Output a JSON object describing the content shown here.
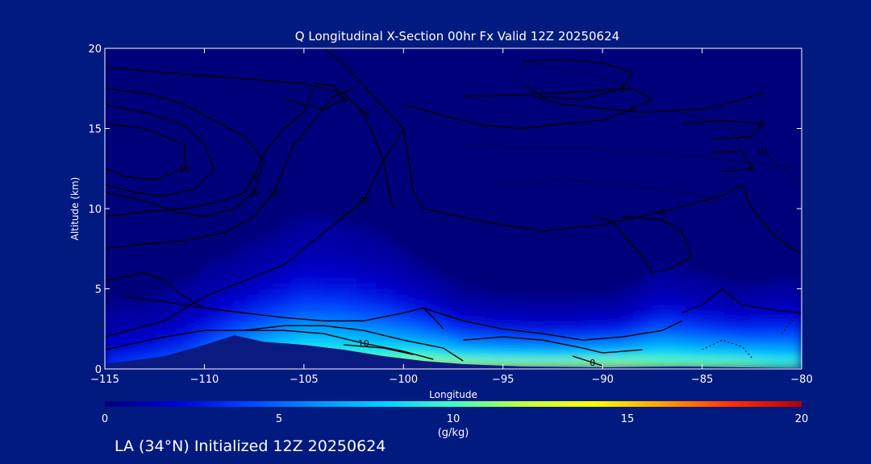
{
  "chart_data": {
    "type": "heatmap",
    "title": "Q Longitudinal X-Section 00hr  Fx Valid 12Z 20250624",
    "xlabel": "Longitude",
    "ylabel": "Altitude (km)",
    "xlim": [
      -115,
      -80
    ],
    "ylim": [
      0,
      20
    ],
    "x_ticks": [
      -115,
      -110,
      -105,
      -100,
      -95,
      -90,
      -85,
      -80
    ],
    "y_ticks": [
      0,
      5,
      10,
      15,
      20
    ],
    "colorbar": {
      "min": 0,
      "max": 20,
      "ticks": [
        0,
        5,
        10,
        15,
        20
      ],
      "label": "(g/kg)",
      "colors": [
        "#00007a",
        "#0000d0",
        "#0040ff",
        "#0090ff",
        "#00d0ff",
        "#40ffc0",
        "#c0ff40",
        "#ffff00",
        "#ffa000",
        "#ff3000",
        "#b00000"
      ]
    },
    "moisture_columns": [
      {
        "lon": -115,
        "top_km": 4.0,
        "surface_q": 4
      },
      {
        "lon": -113,
        "top_km": 4.2,
        "surface_q": 5
      },
      {
        "lon": -111,
        "top_km": 5.5,
        "surface_q": 6
      },
      {
        "lon": -109,
        "top_km": 7.0,
        "surface_q": 9
      },
      {
        "lon": -107,
        "top_km": 8.2,
        "surface_q": 11
      },
      {
        "lon": -105,
        "top_km": 9.5,
        "surface_q": 12
      },
      {
        "lon": -103,
        "top_km": 9.2,
        "surface_q": 12
      },
      {
        "lon": -101,
        "top_km": 8.2,
        "surface_q": 12
      },
      {
        "lon": -99,
        "top_km": 6.5,
        "surface_q": 13
      },
      {
        "lon": -97,
        "top_km": 5.0,
        "surface_q": 13
      },
      {
        "lon": -95,
        "top_km": 4.6,
        "surface_q": 13
      },
      {
        "lon": -93,
        "top_km": 4.4,
        "surface_q": 13
      },
      {
        "lon": -91,
        "top_km": 4.5,
        "surface_q": 13
      },
      {
        "lon": -89,
        "top_km": 4.8,
        "surface_q": 13
      },
      {
        "lon": -87,
        "top_km": 6.5,
        "surface_q": 12
      },
      {
        "lon": -85,
        "top_km": 5.8,
        "surface_q": 12
      },
      {
        "lon": -83,
        "top_km": 5.2,
        "surface_q": 12
      },
      {
        "lon": -81,
        "top_km": 5.6,
        "surface_q": 11
      },
      {
        "lon": -80,
        "top_km": 5.6,
        "surface_q": 11
      }
    ],
    "terrain": [
      {
        "lon": -115,
        "alt_km": 0.3
      },
      {
        "lon": -112,
        "alt_km": 0.8
      },
      {
        "lon": -110,
        "alt_km": 1.5
      },
      {
        "lon": -108.5,
        "alt_km": 2.1
      },
      {
        "lon": -107,
        "alt_km": 1.7
      },
      {
        "lon": -105,
        "alt_km": 1.5
      },
      {
        "lon": -103,
        "alt_km": 1.2
      },
      {
        "lon": -101,
        "alt_km": 0.8
      },
      {
        "lon": -99,
        "alt_km": 0.5
      },
      {
        "lon": -97,
        "alt_km": 0.3
      },
      {
        "lon": -94,
        "alt_km": 0.15
      },
      {
        "lon": -90,
        "alt_km": 0.1
      },
      {
        "lon": -86,
        "alt_km": 0.15
      },
      {
        "lon": -83,
        "alt_km": 0.1
      },
      {
        "lon": -80,
        "alt_km": 0.05
      }
    ],
    "contours": [
      {
        "label": "10",
        "dashed": false,
        "points": [
          [
            -115,
            2.0
          ],
          [
            -112,
            3.0
          ],
          [
            -110,
            4.5
          ],
          [
            -108,
            5.5
          ],
          [
            -106,
            6.5
          ],
          [
            -104,
            8.5
          ],
          [
            -102,
            10.5
          ],
          [
            -101,
            13
          ],
          [
            -100,
            15
          ],
          [
            -101.5,
            17
          ],
          [
            -103,
            19
          ],
          [
            -104,
            20
          ]
        ]
      },
      {
        "label": "",
        "dashed": false,
        "points": [
          [
            -115,
            1.2
          ],
          [
            -112,
            2.0
          ],
          [
            -110,
            2.4
          ],
          [
            -108,
            2.4
          ],
          [
            -106,
            2.7
          ],
          [
            -104,
            2.7
          ],
          [
            -102,
            2.4
          ],
          [
            -100,
            1.8
          ],
          [
            -98,
            1.3
          ],
          [
            -97,
            0.5
          ]
        ]
      },
      {
        "label": "10",
        "dashed": false,
        "points": [
          [
            -108,
            2.4
          ],
          [
            -106,
            2.4
          ],
          [
            -104,
            2.2
          ],
          [
            -102,
            1.6
          ],
          [
            -100,
            1.1
          ],
          [
            -98.5,
            0.6
          ]
        ]
      },
      {
        "label": "",
        "dashed": false,
        "points": [
          [
            -103,
            1.5
          ],
          [
            -101,
            1.3
          ],
          [
            -99.5,
            0.9
          ]
        ]
      },
      {
        "label": "10",
        "dashed": false,
        "points": [
          [
            -115,
            17.5
          ],
          [
            -113,
            17.2
          ],
          [
            -111,
            16.5
          ],
          [
            -109.5,
            15.5
          ],
          [
            -108,
            14.5
          ],
          [
            -107,
            13
          ],
          [
            -107.5,
            11
          ],
          [
            -108.5,
            10
          ],
          [
            -110,
            9.5
          ],
          [
            -111.5,
            9.8
          ],
          [
            -113,
            10.5
          ],
          [
            -115,
            11
          ]
        ]
      },
      {
        "label": "",
        "dashed": false,
        "points": [
          [
            -115,
            16.5
          ],
          [
            -113,
            16
          ],
          [
            -111,
            15.2
          ],
          [
            -110,
            14
          ],
          [
            -109.5,
            12.5
          ],
          [
            -110.5,
            11.2
          ],
          [
            -112,
            10.8
          ],
          [
            -113.5,
            11
          ],
          [
            -115,
            11.5
          ]
        ]
      },
      {
        "label": "10",
        "dashed": false,
        "points": [
          [
            -115,
            15.3
          ],
          [
            -113,
            15
          ],
          [
            -111,
            14
          ],
          [
            -111,
            12.5
          ],
          [
            -112.5,
            11.8
          ],
          [
            -114,
            12
          ],
          [
            -115,
            12.5
          ]
        ]
      },
      {
        "label": "50",
        "dashed": false,
        "points": [
          [
            -115,
            9.5
          ],
          [
            -113,
            9.8
          ],
          [
            -111,
            10
          ],
          [
            -109,
            10.5
          ],
          [
            -108,
            11
          ],
          [
            -107.5,
            12
          ],
          [
            -107,
            13.5
          ],
          [
            -106,
            15
          ],
          [
            -105,
            16
          ],
          [
            -104.5,
            17.5
          ]
        ]
      },
      {
        "label": "50",
        "dashed": false,
        "points": [
          [
            -115,
            7.5
          ],
          [
            -113,
            7.8
          ],
          [
            -111,
            8
          ],
          [
            -109,
            8.5
          ],
          [
            -107.5,
            9.5
          ],
          [
            -106.5,
            11
          ],
          [
            -106,
            12.5
          ],
          [
            -105.5,
            14
          ],
          [
            -104.5,
            15.5
          ],
          [
            -103.5,
            17
          ],
          [
            -102.5,
            17.5
          ]
        ]
      },
      {
        "label": "10",
        "dashed": false,
        "points": [
          [
            -115,
            18.8
          ],
          [
            -110,
            18.3
          ],
          [
            -105,
            17.8
          ],
          [
            -103,
            17.2
          ],
          [
            -102,
            16
          ],
          [
            -101.5,
            14.5
          ],
          [
            -101,
            13
          ],
          [
            -100.8,
            11.5
          ],
          [
            -100.5,
            10
          ]
        ]
      },
      {
        "label": "",
        "dashed": false,
        "points": [
          [
            -114,
            4.5
          ],
          [
            -112,
            4.2
          ],
          [
            -110,
            3.8
          ],
          [
            -108,
            3.5
          ],
          [
            -106,
            3.2
          ],
          [
            -104,
            3.0
          ],
          [
            -102,
            3.0
          ],
          [
            -100,
            3.5
          ],
          [
            -99,
            3.8
          ],
          [
            -98.5,
            3.2
          ],
          [
            -98,
            2.5
          ]
        ]
      },
      {
        "label": "0",
        "dashed": false,
        "points": [
          [
            -106,
            16.8
          ],
          [
            -104,
            16.2
          ],
          [
            -103,
            16.8
          ],
          [
            -103.5,
            17.7
          ],
          [
            -104.5,
            17.8
          ]
        ]
      },
      {
        "label": "0",
        "dashed": false,
        "points": [
          [
            -94,
            19.2
          ],
          [
            -92,
            19.3
          ],
          [
            -90,
            19.1
          ],
          [
            -88.5,
            18.5
          ],
          [
            -89,
            17.5
          ],
          [
            -91,
            16.8
          ],
          [
            -93,
            17
          ],
          [
            -94,
            17.8
          ]
        ]
      },
      {
        "label": "0",
        "dashed": false,
        "points": [
          [
            -100,
            16.5
          ],
          [
            -98,
            15.8
          ],
          [
            -96,
            15.2
          ],
          [
            -94,
            15
          ],
          [
            -92,
            15.3
          ],
          [
            -90,
            15.5
          ],
          [
            -88.5,
            16.2
          ],
          [
            -87.5,
            16.8
          ],
          [
            -88.5,
            17.5
          ],
          [
            -91,
            17.3
          ],
          [
            -94,
            17.1
          ],
          [
            -97,
            17
          ]
        ]
      },
      {
        "label": "0",
        "dashed": false,
        "points": [
          [
            -100,
            15
          ],
          [
            -99.5,
            11
          ],
          [
            -99,
            10
          ],
          [
            -96,
            9.2
          ],
          [
            -93,
            8.6
          ],
          [
            -90,
            9
          ],
          [
            -87,
            9.8
          ],
          [
            -84,
            10.8
          ],
          [
            -83,
            11.5
          ],
          [
            -82.5,
            10
          ],
          [
            -81.5,
            8.5
          ],
          [
            -80.5,
            7.5
          ],
          [
            -80,
            7.2
          ]
        ]
      },
      {
        "label": "0",
        "dashed": false,
        "points": [
          [
            -86,
            15.3
          ],
          [
            -84,
            15.5
          ],
          [
            -82,
            15.3
          ],
          [
            -82.5,
            14.5
          ],
          [
            -84.5,
            14.3
          ]
        ]
      },
      {
        "label": "0",
        "dashed": false,
        "points": [
          [
            -84.5,
            13.5
          ],
          [
            -83,
            13.6
          ],
          [
            -82.5,
            12.5
          ],
          [
            -84,
            12.3
          ]
        ]
      },
      {
        "label": "",
        "dashed": false,
        "points": [
          [
            -93.5,
            17
          ],
          [
            -92,
            16.5
          ],
          [
            -88,
            16
          ],
          [
            -85,
            16.2
          ],
          [
            -83,
            16.8
          ],
          [
            -82,
            17.2
          ]
        ]
      },
      {
        "label": "",
        "dashed": false,
        "points": [
          [
            -90.5,
            9.5
          ],
          [
            -89.5,
            9.2
          ],
          [
            -88,
            7
          ],
          [
            -87.5,
            6
          ],
          [
            -86.5,
            6.3
          ],
          [
            -85.5,
            7
          ],
          [
            -86,
            8.5
          ],
          [
            -87,
            9.3
          ],
          [
            -89,
            9.5
          ]
        ]
      },
      {
        "label": "",
        "dashed": false,
        "points": [
          [
            -115,
            5.5
          ],
          [
            -113,
            6
          ],
          [
            -112,
            5.5
          ],
          [
            -111,
            4.5
          ],
          [
            -110,
            3.8
          ],
          [
            -108,
            3.5
          ]
        ]
      },
      {
        "label": "",
        "dashed": false,
        "points": [
          [
            -97,
            1.8
          ],
          [
            -95,
            2.0
          ],
          [
            -93,
            1.8
          ],
          [
            -91,
            1.3
          ],
          [
            -90,
            1.0
          ],
          [
            -88,
            1.2
          ]
        ]
      },
      {
        "label": "",
        "dashed": false,
        "points": [
          [
            -99,
            3.8
          ],
          [
            -97,
            3.0
          ],
          [
            -95,
            2.5
          ],
          [
            -93,
            2.2
          ],
          [
            -91,
            1.8
          ],
          [
            -89,
            2.0
          ],
          [
            -87,
            2.4
          ],
          [
            -86,
            3.0
          ]
        ]
      },
      {
        "label": "",
        "dashed": false,
        "points": [
          [
            -86,
            3.5
          ],
          [
            -85,
            4.0
          ],
          [
            -84,
            5.0
          ],
          [
            -83.5,
            4.5
          ],
          [
            -83,
            4.0
          ],
          [
            -82,
            3.8
          ],
          [
            -81,
            3.6
          ],
          [
            -80,
            3.5
          ]
        ]
      },
      {
        "label": "0",
        "dashed": false,
        "points": [
          [
            -91.5,
            0.8
          ],
          [
            -90.5,
            0.4
          ],
          [
            -90,
            0.2
          ]
        ]
      },
      {
        "label": "",
        "dashed": true,
        "points": [
          [
            -94,
            19
          ],
          [
            -92,
            18.7
          ],
          [
            -90,
            18.2
          ],
          [
            -88.5,
            17.5
          ]
        ]
      },
      {
        "label": "10",
        "dashed": true,
        "points": [
          [
            -86,
            16
          ],
          [
            -84,
            15.2
          ],
          [
            -83,
            14.5
          ],
          [
            -82,
            13.6
          ],
          [
            -81,
            12.6
          ],
          [
            -80,
            11.5
          ]
        ]
      },
      {
        "label": "",
        "dashed": true,
        "points": [
          [
            -97,
            14
          ],
          [
            -94,
            13.8
          ],
          [
            -91,
            13.8
          ],
          [
            -88,
            13.5
          ],
          [
            -85,
            13.2
          ],
          [
            -82,
            12.8
          ],
          [
            -80,
            12.5
          ]
        ]
      },
      {
        "label": "",
        "dashed": true,
        "points": [
          [
            -95,
            11.5
          ],
          [
            -92,
            11.8
          ],
          [
            -89,
            11.5
          ],
          [
            -86,
            11
          ],
          [
            -84,
            10.5
          ]
        ]
      },
      {
        "label": "",
        "dashed": true,
        "points": [
          [
            -85,
            1.2
          ],
          [
            -84,
            1.8
          ],
          [
            -83,
            1.4
          ],
          [
            -82.5,
            0.7
          ]
        ]
      },
      {
        "label": "",
        "dashed": true,
        "points": [
          [
            -81,
            2.2
          ],
          [
            -80.5,
            3.0
          ],
          [
            -80,
            3.5
          ]
        ]
      }
    ],
    "caption": "LA (34°N) Initialized 12Z 20250624"
  }
}
